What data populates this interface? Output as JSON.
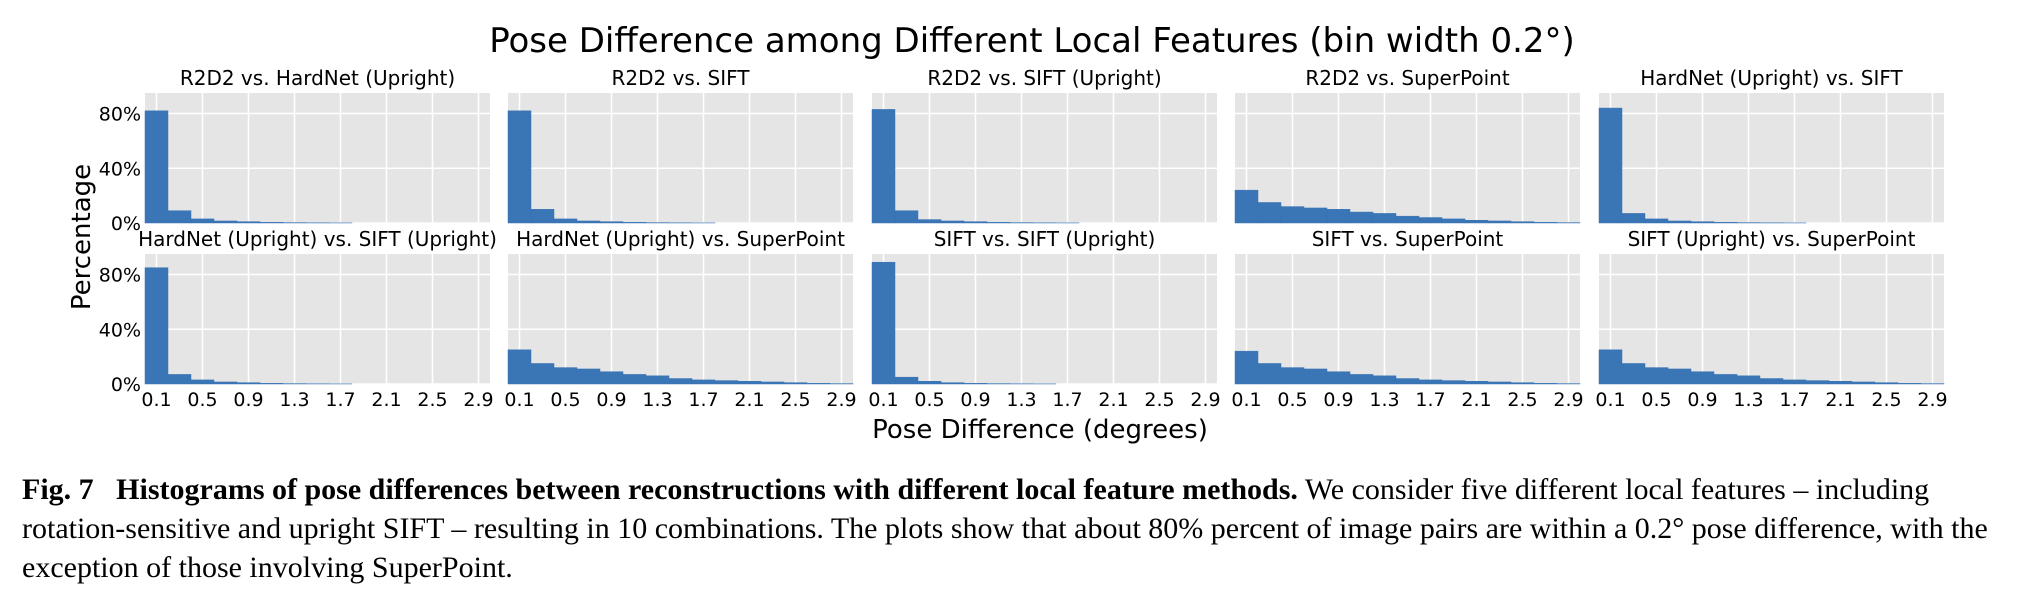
{
  "chart_data": {
    "type": "bar",
    "title": "Pose Difference among Different Local Features (bin width 0.2°)",
    "xlabel": "Pose Difference (degrees)",
    "ylabel": "Percentage",
    "layout": "2x5 grid of histograms",
    "bin_width": 0.2,
    "xlim": [
      0,
      3.0
    ],
    "ylim": [
      0,
      95
    ],
    "xticks": [
      "0.1",
      "0.5",
      "0.9",
      "1.3",
      "1.7",
      "2.1",
      "2.5",
      "2.9"
    ],
    "yticks": [
      "0%",
      "40%",
      "80%"
    ],
    "bin_centers": [
      0.1,
      0.3,
      0.5,
      0.7,
      0.9,
      1.1,
      1.3,
      1.5,
      1.7,
      1.9,
      2.1,
      2.3,
      2.5,
      2.7,
      2.9
    ],
    "grid": true,
    "bar_color": "#3a75b5",
    "panel_background": "#e5e5e5",
    "panels": [
      {
        "title": "R2D2 vs. HardNet (Upright)",
        "values": [
          82,
          9,
          3,
          1.5,
          1,
          0.5,
          0.3,
          0.2,
          0.1,
          0,
          0,
          0,
          0,
          0,
          0
        ]
      },
      {
        "title": "R2D2 vs. SIFT",
        "values": [
          82,
          10,
          3,
          1.5,
          1,
          0.5,
          0.3,
          0.2,
          0.1,
          0,
          0,
          0,
          0,
          0,
          0
        ]
      },
      {
        "title": "R2D2 vs. SIFT (Upright)",
        "values": [
          83,
          9,
          2.5,
          1.5,
          1,
          0.5,
          0.3,
          0.2,
          0.1,
          0,
          0,
          0,
          0,
          0,
          0
        ]
      },
      {
        "title": "R2D2 vs. SuperPoint",
        "values": [
          24,
          15,
          12,
          11,
          10,
          8,
          7,
          5,
          4,
          3,
          2,
          1.5,
          1,
          0.5,
          0.3
        ]
      },
      {
        "title": "HardNet (Upright) vs. SIFT",
        "values": [
          84,
          7,
          3,
          1.5,
          1,
          0.5,
          0.3,
          0.2,
          0.1,
          0,
          0,
          0,
          0,
          0,
          0
        ]
      },
      {
        "title": "HardNet (Upright) vs. SIFT (Upright)",
        "values": [
          85,
          7,
          3,
          1.5,
          1,
          0.5,
          0.3,
          0.2,
          0.1,
          0,
          0,
          0,
          0,
          0,
          0
        ]
      },
      {
        "title": "HardNet (Upright) vs. SuperPoint",
        "values": [
          25,
          15,
          12,
          11,
          9,
          7,
          6,
          4,
          3,
          2.5,
          2,
          1.5,
          1,
          0.5,
          0.3
        ]
      },
      {
        "title": "SIFT vs. SIFT (Upright)",
        "values": [
          89,
          5,
          2,
          1,
          0.5,
          0.3,
          0.2,
          0.1,
          0,
          0,
          0,
          0,
          0,
          0,
          0
        ]
      },
      {
        "title": "SIFT vs. SuperPoint",
        "values": [
          24,
          15,
          12,
          11,
          9,
          7,
          6,
          4,
          3,
          2.5,
          2,
          1.5,
          1,
          0.5,
          0.3
        ]
      },
      {
        "title": "SIFT (Upright) vs. SuperPoint",
        "values": [
          25,
          15,
          12,
          11,
          9,
          7,
          6,
          4,
          3,
          2.5,
          2,
          1.5,
          1,
          0.5,
          0.3
        ]
      }
    ]
  },
  "caption": {
    "label": "Fig. 7",
    "bold_text": "Histograms of pose differences between reconstructions with different local feature methods.",
    "text": "We consider five different local features – including rotation-sensitive and upright SIFT – resulting in 10 combinations. The plots show that about 80% percent of image pairs are within a 0.2° pose difference, with the exception of those involving SuperPoint."
  }
}
